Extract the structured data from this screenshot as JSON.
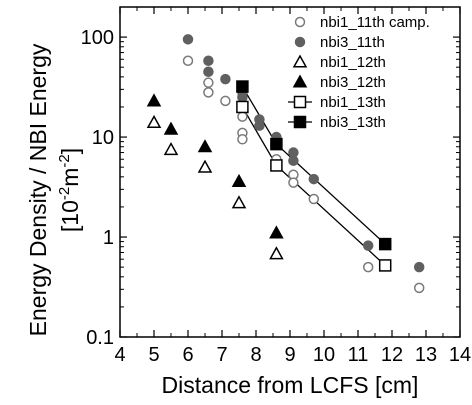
{
  "chart_data": {
    "type": "scatter",
    "xlabel": "Distance from LCFS [cm]",
    "ylabel_line1": "Energy Density / NBI Energy",
    "ylabel_line2": "[10",
    "ylabel_exp1": "-2",
    "ylabel_mid": "m",
    "ylabel_exp2": "-2",
    "ylabel_end": "]",
    "xlim": [
      4,
      14
    ],
    "ylim": [
      0.1,
      200
    ],
    "yscale": "log",
    "xticks": [
      "4",
      "5",
      "6",
      "7",
      "8",
      "9",
      "10",
      "11",
      "12",
      "13",
      "14"
    ],
    "yticks": [
      "0.1",
      "1",
      "10",
      "100"
    ],
    "legend_position": "top-right",
    "series": [
      {
        "name": "nbi1_11th camp.",
        "marker": "circle-open",
        "color": "#7a7a7a",
        "line": false,
        "points": [
          [
            6.0,
            58
          ],
          [
            6.6,
            35
          ],
          [
            6.6,
            28
          ],
          [
            7.1,
            23
          ],
          [
            7.6,
            16
          ],
          [
            7.6,
            11
          ],
          [
            7.6,
            9.5
          ],
          [
            8.6,
            6
          ],
          [
            8.6,
            5.2
          ],
          [
            9.1,
            4.2
          ],
          [
            9.1,
            3.5
          ],
          [
            9.7,
            2.4
          ],
          [
            11.3,
            0.5
          ],
          [
            12.8,
            0.31
          ]
        ]
      },
      {
        "name": "nbi3_11th",
        "marker": "circle-filled",
        "color": "#606060",
        "line": false,
        "points": [
          [
            6.0,
            95
          ],
          [
            6.6,
            58
          ],
          [
            6.6,
            45
          ],
          [
            7.1,
            38
          ],
          [
            7.6,
            28
          ],
          [
            7.6,
            25
          ],
          [
            8.1,
            15
          ],
          [
            8.1,
            13
          ],
          [
            8.6,
            10
          ],
          [
            8.6,
            8.5
          ],
          [
            9.1,
            7
          ],
          [
            9.1,
            5.8
          ],
          [
            9.7,
            3.8
          ],
          [
            11.3,
            0.82
          ],
          [
            12.8,
            0.5
          ]
        ]
      },
      {
        "name": "nbi1_12th",
        "marker": "triangle-open",
        "color": "#000000",
        "line": false,
        "points": [
          [
            5.0,
            14
          ],
          [
            5.5,
            7.5
          ],
          [
            6.5,
            5
          ],
          [
            7.5,
            2.2
          ],
          [
            8.6,
            0.68
          ]
        ]
      },
      {
        "name": "nbi3_12th",
        "marker": "triangle-filled",
        "color": "#000000",
        "line": false,
        "points": [
          [
            5.0,
            23
          ],
          [
            5.5,
            12
          ],
          [
            6.5,
            8
          ],
          [
            7.5,
            3.6
          ],
          [
            8.6,
            1.1
          ]
        ]
      },
      {
        "name": "nbi1_13th",
        "marker": "square-open",
        "color": "#000000",
        "line": true,
        "points": [
          [
            7.6,
            20
          ],
          [
            8.6,
            5.2
          ],
          [
            11.8,
            0.52
          ]
        ]
      },
      {
        "name": "nbi3_13th",
        "marker": "square-filled",
        "color": "#000000",
        "line": true,
        "points": [
          [
            7.6,
            32
          ],
          [
            8.6,
            8.5
          ],
          [
            11.8,
            0.85
          ]
        ]
      }
    ]
  }
}
